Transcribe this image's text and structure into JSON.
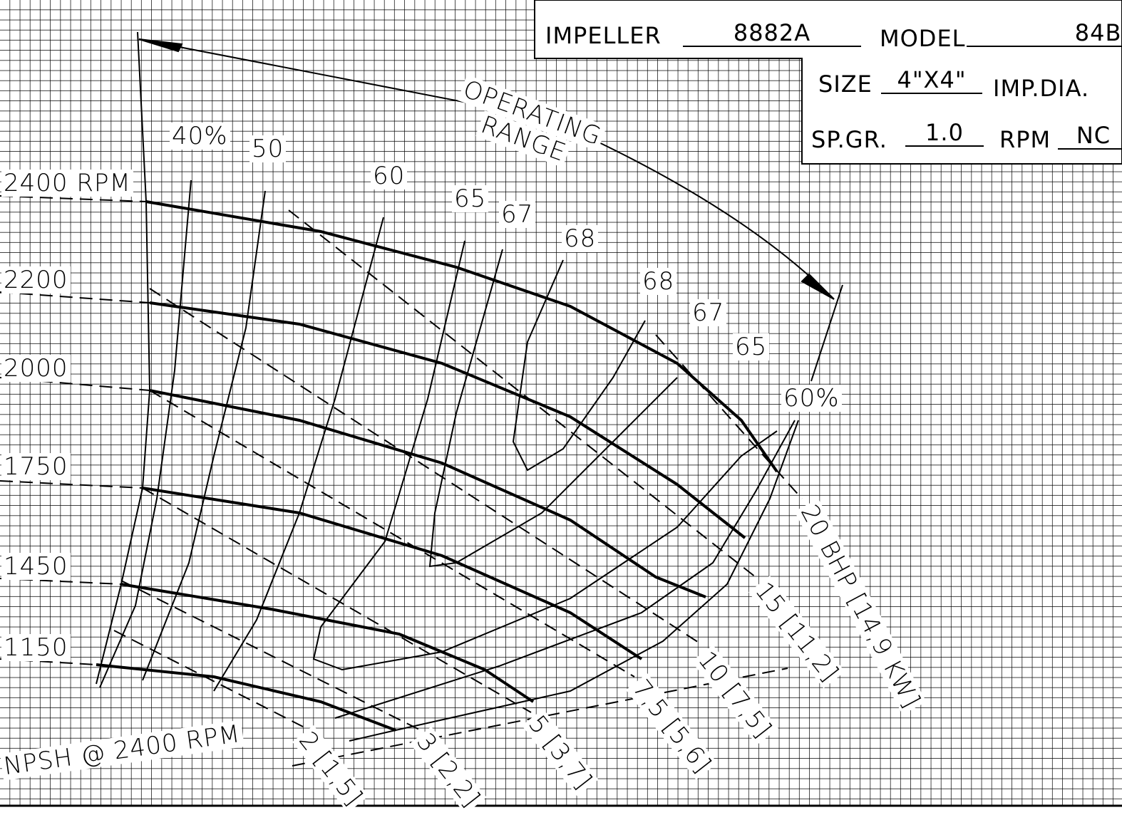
{
  "header": {
    "impeller_label": "IMPELLER",
    "impeller": "8882A",
    "model_label": "MODEL",
    "model": "84B-",
    "size_label": "SIZE",
    "size": "4\"X4\"",
    "imp_dia_label": "IMP.DIA.",
    "sp_gr_label": "SP.GR.",
    "sp_gr": "1.0",
    "rpm_label": "RPM",
    "rpm": "NC"
  },
  "speed_labels": [
    "2400 RPM",
    "2200",
    "2000",
    "1750",
    "1450",
    "1150"
  ],
  "efficiency_labels": [
    "40%",
    "50",
    "60",
    "65",
    "67",
    "68",
    "68",
    "67",
    "65",
    "60%"
  ],
  "operating_range": [
    "OPERATING",
    "RANGE"
  ],
  "bhp_labels": [
    "2 [1,5]",
    "3 [2,2]",
    "5 [3,7]",
    "7,5 [5,6]",
    "10 [7,5]",
    "15 [11,2]",
    "20 BHP [14,9 KW]"
  ],
  "npsh_label": "NPSH @ 2400 RPM"
}
